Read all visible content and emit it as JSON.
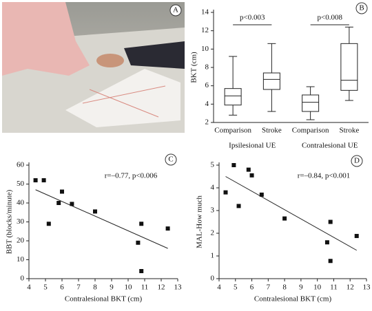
{
  "photo": {
    "panel_label": "A"
  },
  "chart_data": [
    {
      "type": "box",
      "panel_label": "B",
      "ylabel": "BKT (cm)",
      "categories": [
        "Comparison",
        "Stroke",
        "Comparison",
        "Stroke"
      ],
      "groups": [
        "Ipsilesional UE",
        "Contralesional UE"
      ],
      "boxes": [
        {
          "min": 2.8,
          "q1": 3.9,
          "median": 4.9,
          "q3": 5.7,
          "max": 9.2
        },
        {
          "min": 3.2,
          "q1": 5.6,
          "median": 6.7,
          "q3": 7.4,
          "max": 10.6
        },
        {
          "min": 2.3,
          "q1": 3.2,
          "median": 4.2,
          "q3": 5.0,
          "max": 5.9
        },
        {
          "min": 4.4,
          "q1": 5.5,
          "median": 6.6,
          "q3": 10.6,
          "max": 12.4
        }
      ],
      "annotations": [
        "p<0.003",
        "p<0.008"
      ],
      "ylim": [
        2,
        14
      ],
      "yticks": [
        2,
        4,
        6,
        8,
        10,
        12,
        14
      ]
    },
    {
      "type": "scatter",
      "panel_label": "C",
      "xlabel": "Contralesional BKT (cm)",
      "ylabel": "BBT (blocks/minute)",
      "annotation": "r=–0.77, p<0.006",
      "x": [
        4.4,
        4.9,
        5.2,
        5.8,
        6.0,
        6.6,
        8.0,
        10.6,
        10.8,
        10.8,
        12.4
      ],
      "y": [
        52,
        52,
        29,
        40,
        46,
        39.5,
        35.5,
        19,
        29,
        4,
        26.5
      ],
      "fit": {
        "x": [
          4.4,
          12.4
        ],
        "y": [
          47,
          16
        ]
      },
      "xlim": [
        4,
        13
      ],
      "xticks": [
        4,
        5,
        6,
        7,
        8,
        9,
        10,
        11,
        12,
        13
      ],
      "ylim": [
        0,
        60
      ],
      "yticks": [
        0,
        10,
        20,
        30,
        40,
        50,
        60
      ]
    },
    {
      "type": "scatter",
      "panel_label": "D",
      "xlabel": "Contralesional BKT (cm)",
      "ylabel": "MAL-How much",
      "annotation": "r=–0.84, p<0.001",
      "x": [
        4.4,
        4.9,
        5.2,
        5.8,
        6.0,
        6.6,
        8.0,
        10.6,
        10.8,
        10.8,
        12.4
      ],
      "y": [
        3.8,
        5.0,
        3.2,
        4.8,
        4.55,
        3.7,
        2.65,
        1.6,
        2.5,
        0.78,
        1.88
      ],
      "fit": {
        "x": [
          4.4,
          12.4
        ],
        "y": [
          4.5,
          1.25
        ]
      },
      "xlim": [
        4,
        13
      ],
      "xticks": [
        4,
        5,
        6,
        7,
        8,
        9,
        10,
        11,
        12,
        13
      ],
      "ylim": [
        0,
        5
      ],
      "yticks": [
        0,
        1,
        2,
        3,
        4,
        5
      ]
    }
  ]
}
